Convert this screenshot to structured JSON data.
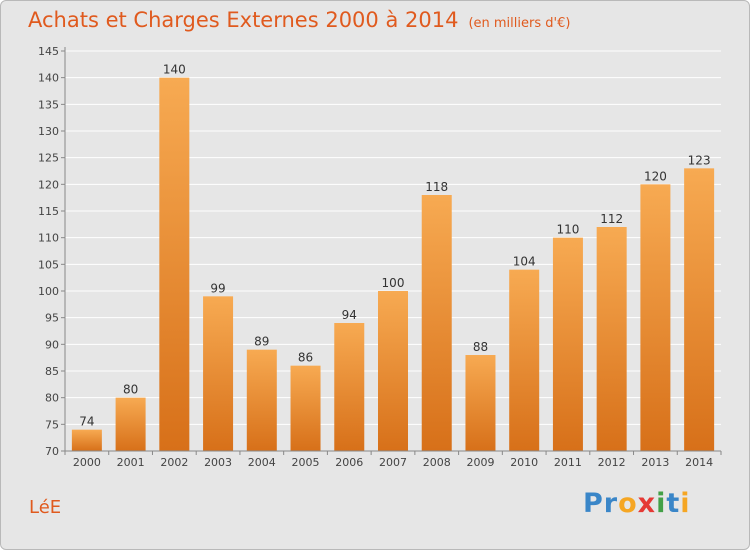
{
  "header": {
    "title": "Achats et Charges Externes 2000 à 2014",
    "unit": "(en milliers d'€)"
  },
  "footer": {
    "commune": "LéE",
    "logo": [
      {
        "text": "Pr",
        "color": "#3a86c8"
      },
      {
        "text": "o",
        "color": "#f5a623"
      },
      {
        "text": "x",
        "color": "#e53935"
      },
      {
        "text": "i",
        "color": "#43a047"
      },
      {
        "text": "t",
        "color": "#3a86c8"
      },
      {
        "text": "i",
        "color": "#f5a623"
      }
    ]
  },
  "colors": {
    "bar_top": "#f7aa52",
    "bar_bottom": "#d77019",
    "accent": "#e05a1e"
  },
  "chart_data": {
    "type": "bar",
    "title": "Achats et Charges Externes 2000 à 2014",
    "subtitle": "(en milliers d'€)",
    "categories": [
      "2000",
      "2001",
      "2002",
      "2003",
      "2004",
      "2005",
      "2006",
      "2007",
      "2008",
      "2009",
      "2010",
      "2011",
      "2012",
      "2013",
      "2014"
    ],
    "values": [
      74,
      80,
      140,
      99,
      89,
      86,
      94,
      100,
      118,
      88,
      104,
      110,
      112,
      120,
      123
    ],
    "ylim": [
      70,
      145
    ],
    "yticks": [
      70,
      75,
      80,
      85,
      90,
      95,
      100,
      105,
      110,
      115,
      120,
      125,
      130,
      135,
      140,
      145
    ],
    "grid": true,
    "legend": "none"
  }
}
